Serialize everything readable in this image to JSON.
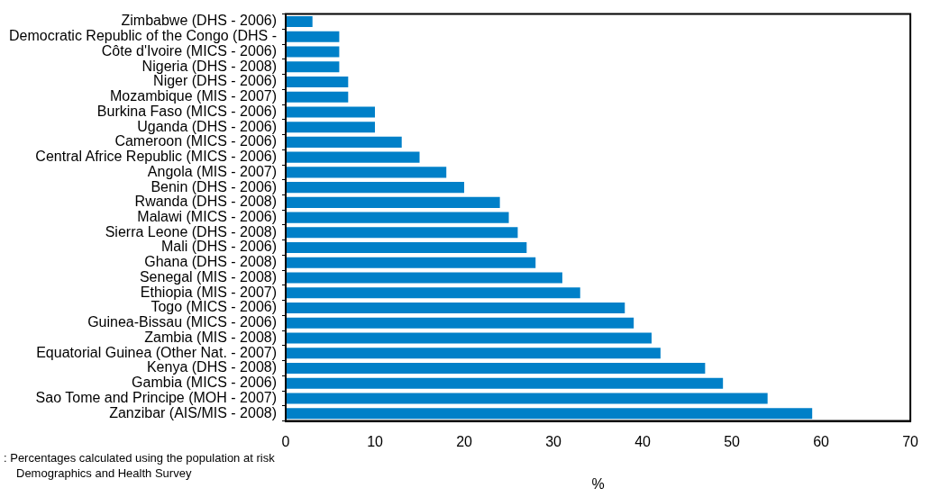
{
  "chart_data": {
    "type": "bar",
    "orientation": "horizontal",
    "xlabel": "%",
    "categories": [
      "Zimbabwe (DHS - 2006)",
      "Democratic Republic of the Congo (DHS -",
      "Côte d'Ivoire (MICS - 2006)",
      "Nigeria (DHS - 2008)",
      "Niger (DHS - 2006)",
      "Mozambique (MIS - 2007)",
      "Burkina Faso (MICS - 2006)",
      "Uganda (DHS - 2006)",
      "Cameroon (MICS - 2006)",
      "Central Africe Republic (MICS - 2006)",
      "Angola (MIS - 2007)",
      "Benin (DHS - 2006)",
      "Rwanda (DHS - 2008)",
      "Malawi (MICS - 2006)",
      "Sierra Leone (DHS - 2008)",
      "Mali (DHS - 2006)",
      "Ghana (DHS - 2008)",
      "Senegal (MIS - 2008)",
      "Ethiopia (MIS - 2007)",
      "Togo (MICS - 2006)",
      "Guinea-Bissau (MICS - 2006)",
      "Zambia (MIS - 2008)",
      "Equatorial Guinea (Other Nat. - 2007)",
      "Kenya (DHS - 2008)",
      "Gambia (MICS - 2006)",
      "Sao Tome and Principe (MOH - 2007)",
      "Zanzibar (AIS/MIS - 2008)"
    ],
    "values": [
      3,
      6,
      6,
      6,
      7,
      7,
      10,
      10,
      13,
      15,
      18,
      20,
      24,
      25,
      26,
      27,
      28,
      31,
      33,
      38,
      39,
      41,
      42,
      47,
      49,
      54,
      59
    ],
    "color": "#0080c8",
    "xlim": [
      0,
      70
    ],
    "xticks": [
      0,
      10,
      20,
      30,
      40,
      50,
      60,
      70
    ],
    "grid": false,
    "legend": false,
    "annotations": [
      ": Percentages calculated using the population at risk",
      "Demographics and Health Survey"
    ]
  }
}
